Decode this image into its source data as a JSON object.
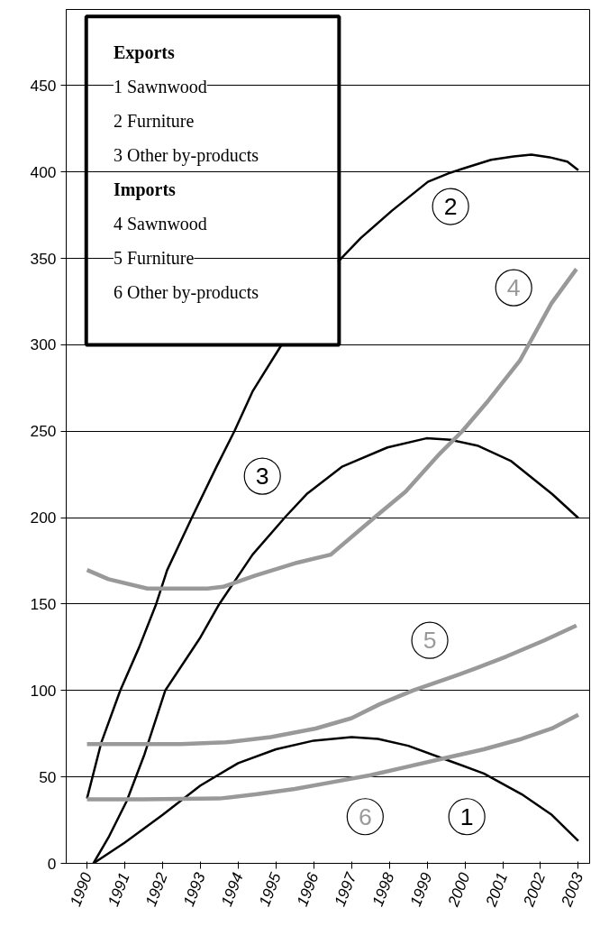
{
  "chart_data": {
    "type": "line",
    "annotations": [
      "Exports",
      "1 Sawnwood",
      "2 Furniture",
      "3 Other by-products",
      "Imports",
      "4 Sawnwood",
      "5 Furniture",
      "6 Other by-products",
      {
        "text": "1",
        "x": 2000.05,
        "y": 27
      },
      {
        "text": "2",
        "x": 1999.62,
        "y": 380
      },
      {
        "text": "3",
        "x": 1994.64,
        "y": 224
      },
      {
        "text": "4",
        "x": 2001.29,
        "y": 333
      },
      {
        "text": "5",
        "x": 1999.07,
        "y": 129
      },
      {
        "text": "6",
        "x": 1997.36,
        "y": 27
      }
    ],
    "xlim": [
      1989.45,
      2003.3
    ],
    "xticks": [
      1990,
      1991,
      1992,
      1993,
      1994,
      1995,
      1996,
      1997,
      1998,
      1999,
      2000,
      2001,
      2002,
      2003
    ],
    "ylim": [
      0,
      494
    ],
    "yticks": [
      0,
      50,
      100,
      150,
      200,
      250,
      300,
      350,
      400,
      450
    ],
    "grid": "y",
    "line_style": "solid",
    "marker": "none",
    "series": [
      {
        "color": "#000000",
        "x": [
          1990.17,
          1991.0,
          1992.0,
          1993.0,
          1994.0,
          1995.0,
          1996.0,
          1997.0,
          1997.7,
          1998.5,
          1999.5,
          2000.5,
          2001.5,
          2002.3,
          2003.0
        ],
        "values": [
          0,
          12,
          28,
          45,
          58,
          66,
          71,
          73,
          72,
          68,
          60,
          52,
          40,
          28,
          13
        ]
      },
      {
        "color": "#000000",
        "x": [
          1990.0,
          1990.38,
          1990.88,
          1991.38,
          1991.83,
          1992.12,
          1992.79,
          1993.43,
          1993.9,
          1994.38,
          1995.14,
          1995.8,
          1996.64,
          1997.24,
          1998.07,
          1999.02,
          1999.62,
          2000.1,
          2000.69,
          2001.29,
          2001.76,
          2002.24,
          2002.71,
          2003.0
        ],
        "values": [
          37.5,
          70,
          100,
          125,
          150,
          169.6,
          200.7,
          229.6,
          250,
          273,
          299.7,
          null,
          348,
          361.7,
          377.6,
          394.3,
          399.6,
          403,
          407,
          409,
          410,
          408.5,
          406,
          401
        ]
      },
      {
        "color": "#000000",
        "x": [
          1990.17,
          1990.57,
          1991.05,
          1991.52,
          1992.07,
          1992.98,
          1993.5,
          1994.38,
          1995.26,
          1995.81,
          1996.76,
          1997.95,
          1998.98,
          1999.62,
          2000.33,
          2001.21,
          2002.31,
          2003.0
        ],
        "values": [
          0,
          15,
          36,
          63,
          100,
          130,
          150,
          178.6,
          200.7,
          213.6,
          229.6,
          240.6,
          245.9,
          245,
          241.7,
          232.9,
          213.6,
          199.8
        ]
      },
      {
        "color": "#999999",
        "x": [
          1990.0,
          1990.57,
          1991.6,
          1993.19,
          1993.6,
          1994.45,
          1995.57,
          1996.45,
          1997.64,
          1998.43,
          1999.31,
          1999.93,
          2000.57,
          2001.45,
          2002.29,
          2002.95
        ],
        "values": [
          169.7,
          164.4,
          159,
          159,
          160,
          166.5,
          174,
          178.6,
          200.7,
          215,
          236.5,
          250,
          266.4,
          290.7,
          324,
          343.8
        ]
      },
      {
        "color": "#999999",
        "x": [
          1990.0,
          1992.48,
          1993.67,
          1994.86,
          1996.05,
          1997.0,
          1997.74,
          1998.62,
          1999.62,
          2000.31,
          2001.1,
          2002.1,
          2002.95
        ],
        "values": [
          69,
          69,
          70,
          73,
          78,
          84,
          92,
          100,
          107.5,
          113,
          119.7,
          129,
          137.6
        ]
      },
      {
        "color": "#999999",
        "x": [
          1990.0,
          1991.5,
          1993.5,
          1994.5,
          1995.5,
          1996.5,
          1997.5,
          1998.5,
          1999.5,
          2000.5,
          2001.5,
          2002.3,
          2003.0
        ],
        "values": [
          37,
          37,
          37.5,
          40,
          43,
          47,
          51,
          56,
          61,
          66,
          72,
          78,
          86
        ]
      }
    ]
  }
}
